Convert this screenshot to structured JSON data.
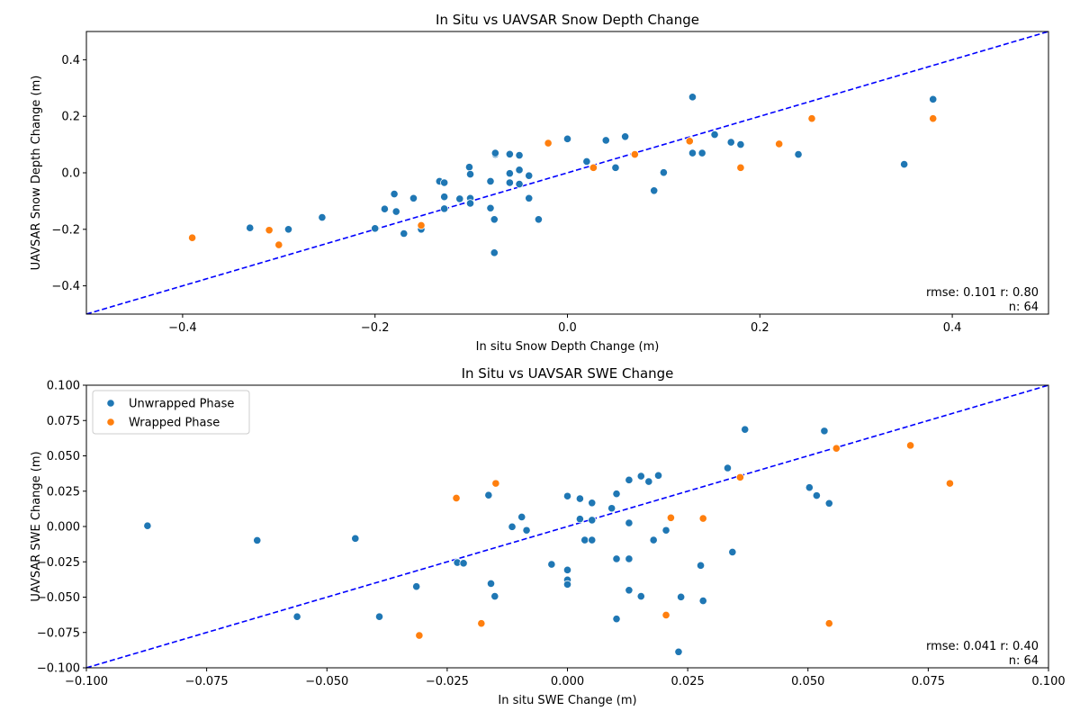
{
  "chart_data": [
    {
      "type": "scatter",
      "title": "In Situ vs UAVSAR Snow Depth Change",
      "xlabel": "In situ Snow Depth Change (m)",
      "ylabel": "UAVSAR Snow Depth Change (m)",
      "xlim": [
        -0.5,
        0.5
      ],
      "ylim": [
        -0.5,
        0.5
      ],
      "xticks": [
        -0.4,
        -0.2,
        0.0,
        0.2,
        0.4
      ],
      "xtick_labels": [
        "−0.4",
        "−0.2",
        "0.0",
        "0.2",
        "0.4"
      ],
      "yticks": [
        -0.4,
        -0.2,
        0.0,
        0.2,
        0.4
      ],
      "ytick_labels": [
        "−0.4",
        "−0.2",
        "0.0",
        "0.2",
        "0.4"
      ],
      "grid": false,
      "stats_line1": "rmse: 0.101 r: 0.80",
      "stats_line2": "n: 64",
      "reference_line": {
        "style": "dashed",
        "color": "#0000ff",
        "from": [
          -0.5,
          -0.5
        ],
        "to": [
          0.5,
          0.5
        ]
      },
      "series": [
        {
          "color": "#1f77b4",
          "points": [
            [
              -0.33,
              -0.195
            ],
            [
              -0.29,
              -0.2
            ],
            [
              -0.255,
              -0.158
            ],
            [
              -0.2,
              -0.197
            ],
            [
              -0.19,
              -0.128
            ],
            [
              -0.18,
              -0.075
            ],
            [
              -0.178,
              -0.137
            ],
            [
              -0.17,
              -0.215
            ],
            [
              -0.16,
              -0.09
            ],
            [
              -0.152,
              -0.2
            ],
            [
              -0.133,
              -0.03
            ],
            [
              -0.128,
              -0.085
            ],
            [
              -0.128,
              -0.035
            ],
            [
              -0.128,
              -0.127
            ],
            [
              -0.112,
              -0.092
            ],
            [
              -0.102,
              0.02
            ],
            [
              -0.101,
              -0.005
            ],
            [
              -0.101,
              -0.09
            ],
            [
              -0.101,
              -0.108
            ],
            [
              -0.08,
              -0.03
            ],
            [
              -0.08,
              -0.125
            ],
            [
              -0.076,
              -0.165
            ],
            [
              -0.076,
              -0.283
            ],
            [
              -0.075,
              0.065
            ],
            [
              -0.075,
              0.07
            ],
            [
              -0.06,
              0.066
            ],
            [
              -0.06,
              -0.002
            ],
            [
              -0.06,
              -0.035
            ],
            [
              -0.05,
              0.062
            ],
            [
              -0.05,
              0.01
            ],
            [
              -0.05,
              -0.04
            ],
            [
              -0.04,
              -0.01
            ],
            [
              -0.04,
              -0.09
            ],
            [
              -0.03,
              -0.165
            ],
            [
              0.0,
              0.12
            ],
            [
              0.02,
              0.04
            ],
            [
              0.04,
              0.115
            ],
            [
              0.05,
              0.018
            ],
            [
              0.06,
              0.128
            ],
            [
              0.09,
              -0.063
            ],
            [
              0.1,
              0.001
            ],
            [
              0.13,
              0.268
            ],
            [
              0.13,
              0.07
            ],
            [
              0.14,
              0.07
            ],
            [
              0.153,
              0.135
            ],
            [
              0.17,
              0.108
            ],
            [
              0.18,
              0.1
            ],
            [
              0.24,
              0.065
            ],
            [
              0.35,
              0.03
            ],
            [
              0.38,
              0.26
            ]
          ]
        },
        {
          "color": "#ff7f0e",
          "points": [
            [
              -0.39,
              -0.23
            ],
            [
              -0.31,
              -0.203
            ],
            [
              -0.3,
              -0.255
            ],
            [
              -0.152,
              -0.186
            ],
            [
              -0.02,
              0.105
            ],
            [
              0.027,
              0.018
            ],
            [
              0.07,
              0.065
            ],
            [
              0.127,
              0.112
            ],
            [
              0.18,
              0.018
            ],
            [
              0.22,
              0.102
            ],
            [
              0.254,
              0.192
            ],
            [
              0.38,
              0.192
            ]
          ]
        }
      ]
    },
    {
      "type": "scatter",
      "title": "In Situ vs UAVSAR SWE Change",
      "xlabel": "In situ SWE Change (m)",
      "ylabel": "UAVSAR SWE Change (m)",
      "xlim": [
        -0.1,
        0.1
      ],
      "ylim": [
        -0.1,
        0.1
      ],
      "xticks": [
        -0.1,
        -0.075,
        -0.05,
        -0.025,
        0.0,
        0.025,
        0.05,
        0.075,
        0.1
      ],
      "xtick_labels": [
        "−0.100",
        "−0.075",
        "−0.050",
        "−0.025",
        "0.000",
        "0.025",
        "0.050",
        "0.075",
        "0.100"
      ],
      "yticks": [
        -0.1,
        -0.075,
        -0.05,
        -0.025,
        0.0,
        0.025,
        0.05,
        0.075,
        0.1
      ],
      "ytick_labels": [
        "−0.100",
        "−0.075",
        "−0.050",
        "−0.025",
        "0.000",
        "0.025",
        "0.050",
        "0.075",
        "0.100"
      ],
      "grid": false,
      "legend_position": "top-left",
      "stats_line1": "rmse: 0.041 r: 0.40",
      "stats_line2": "n: 64",
      "reference_line": {
        "style": "dashed",
        "color": "#0000ff",
        "from": [
          -0.1,
          -0.1
        ],
        "to": [
          0.1,
          0.1
        ]
      },
      "series": [
        {
          "name": "Unwrapped Phase",
          "color": "#1f77b4",
          "points": [
            [
              -0.0873,
              0.0005
            ],
            [
              -0.0645,
              -0.0098
            ],
            [
              -0.0562,
              -0.0638
            ],
            [
              -0.0441,
              -0.0085
            ],
            [
              -0.0391,
              -0.0638
            ],
            [
              -0.0314,
              -0.0425
            ],
            [
              -0.0229,
              -0.0255
            ],
            [
              -0.0216,
              -0.026
            ],
            [
              -0.0164,
              0.0222
            ],
            [
              -0.0159,
              -0.0404
            ],
            [
              -0.0151,
              -0.0494
            ],
            [
              -0.0115,
              -0.0002
            ],
            [
              -0.0095,
              0.0067
            ],
            [
              -0.0085,
              -0.0027
            ],
            [
              -0.0033,
              -0.0268
            ],
            [
              0.0,
              0.0215
            ],
            [
              0.0,
              -0.0308
            ],
            [
              0.0,
              -0.0378
            ],
            [
              0.0,
              -0.041
            ],
            [
              0.0026,
              0.0197
            ],
            [
              0.0026,
              0.0053
            ],
            [
              0.0036,
              -0.0096
            ],
            [
              0.0051,
              0.0167
            ],
            [
              0.0051,
              0.0045
            ],
            [
              0.0051,
              -0.0096
            ],
            [
              0.0092,
              0.0129
            ],
            [
              0.0102,
              0.0231
            ],
            [
              0.0102,
              -0.0229
            ],
            [
              0.0102,
              -0.0654
            ],
            [
              0.0128,
              0.0329
            ],
            [
              0.0128,
              0.0025
            ],
            [
              0.0128,
              -0.0229
            ],
            [
              0.0128,
              -0.0451
            ],
            [
              0.0153,
              0.0356
            ],
            [
              0.0153,
              -0.0494
            ],
            [
              0.0169,
              0.0318
            ],
            [
              0.0179,
              -0.0096
            ],
            [
              0.0189,
              0.0361
            ],
            [
              0.0205,
              -0.0027
            ],
            [
              0.0231,
              -0.0887
            ],
            [
              0.0236,
              -0.0499
            ],
            [
              0.0277,
              -0.0276
            ],
            [
              0.0282,
              -0.0526
            ],
            [
              0.0333,
              0.0414
            ],
            [
              0.0343,
              -0.0181
            ],
            [
              0.0369,
              0.0687
            ],
            [
              0.0503,
              0.0276
            ],
            [
              0.0518,
              0.0219
            ],
            [
              0.0534,
              0.0676
            ],
            [
              0.0544,
              0.0164
            ]
          ]
        },
        {
          "name": "Wrapped Phase",
          "color": "#ff7f0e",
          "points": [
            [
              -0.0308,
              -0.0771
            ],
            [
              -0.0231,
              0.0201
            ],
            [
              -0.0179,
              -0.0686
            ],
            [
              -0.0149,
              0.0305
            ],
            [
              0.0205,
              -0.0627
            ],
            [
              0.0215,
              0.0062
            ],
            [
              0.0282,
              0.0057
            ],
            [
              0.0359,
              0.0348
            ],
            [
              0.0544,
              -0.0686
            ],
            [
              0.0559,
              0.0553
            ],
            [
              0.0713,
              0.0574
            ],
            [
              0.0795,
              0.0305
            ]
          ]
        }
      ]
    }
  ]
}
